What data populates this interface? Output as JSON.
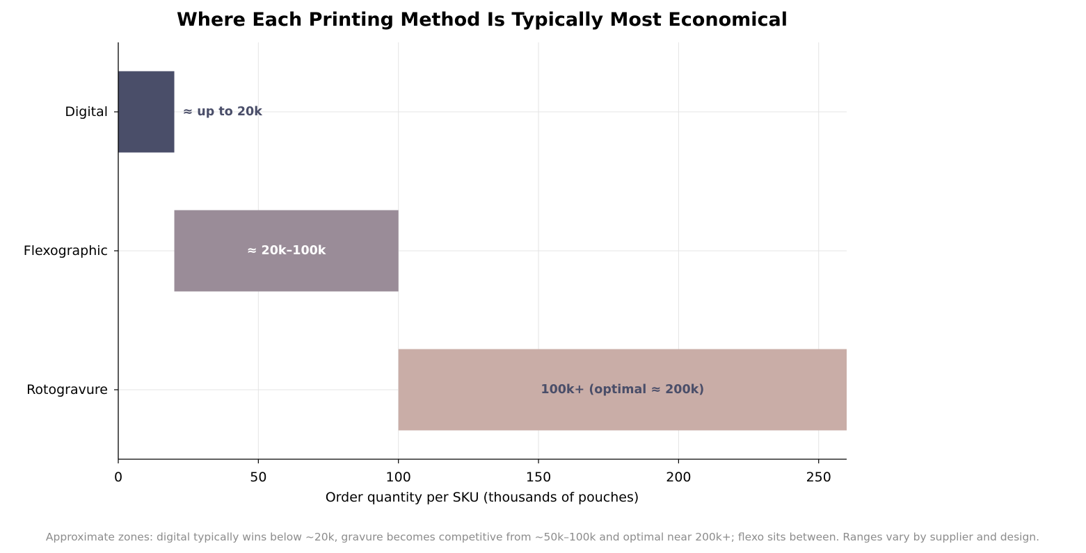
{
  "chart_data": {
    "type": "bar",
    "orientation": "horizontal",
    "title": "Where Each Printing Method Is Typically Most Economical",
    "xlabel": "Order quantity per SKU (thousands of pouches)",
    "ylabel": "",
    "xlim": [
      0,
      260
    ],
    "xticks": [
      0,
      50,
      100,
      150,
      200,
      250
    ],
    "grid": true,
    "categories": [
      "Digital",
      "Flexographic",
      "Rotogravure"
    ],
    "bars": [
      {
        "category": "Digital",
        "start": 0,
        "end": 20,
        "label": "≈ up to 20k",
        "color": "#4a4e69",
        "label_color": "#4a4e69",
        "label_position": "outside"
      },
      {
        "category": "Flexographic",
        "start": 20,
        "end": 100,
        "label": "≈ 20k–100k",
        "color": "#9a8c98",
        "label_color": "#ffffff",
        "label_position": "inside"
      },
      {
        "category": "Rotogravure",
        "start": 100,
        "end": 260,
        "label": "100k+  (optimal ≈ 200k)",
        "color": "#c9ada7",
        "label_color": "#4a4e69",
        "label_position": "inside"
      }
    ],
    "footnote": "Approximate zones: digital typically wins below ~20k, gravure becomes competitive from ~50k–100k and optimal near 200k+; flexo sits between. Ranges vary by supplier and design."
  }
}
